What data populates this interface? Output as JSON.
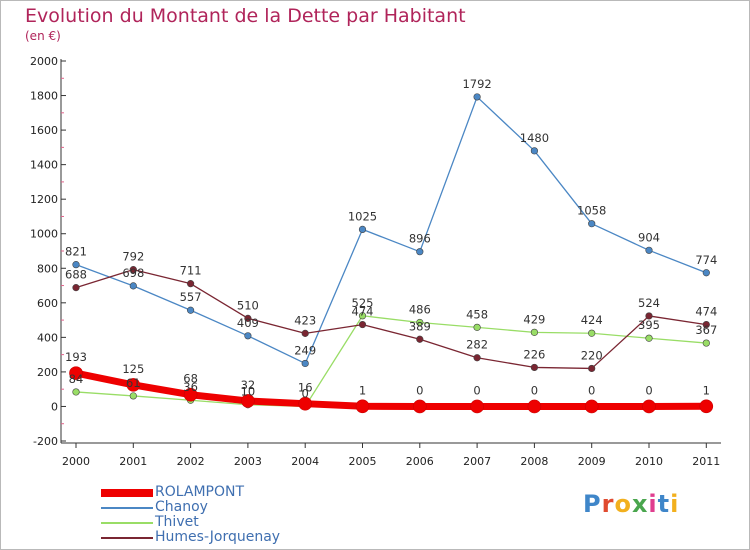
{
  "header": {
    "title": "Evolution du Montant de la Dette par Habitant",
    "subtitle": "(en €)"
  },
  "logo": {
    "text": "Proxiti",
    "colors": [
      "#3f86c9",
      "#e04a2f",
      "#f2b01e",
      "#4aa64e",
      "#e03e8f",
      "#3f86c9",
      "#f2b01e"
    ]
  },
  "chart_data": {
    "type": "line",
    "categories": [
      "2000",
      "2001",
      "2002",
      "2003",
      "2004",
      "2005",
      "2006",
      "2007",
      "2008",
      "2009",
      "2010",
      "2011"
    ],
    "ylim": [
      -200,
      2000
    ],
    "yticks": [
      -200,
      0,
      200,
      400,
      600,
      800,
      1000,
      1200,
      1400,
      1600,
      1800,
      2000
    ],
    "grid": false,
    "legend_position": "bottom-left",
    "series": [
      {
        "name": "Chanoy",
        "color": "#4b87c4",
        "values": [
          821,
          698,
          557,
          409,
          249,
          1025,
          896,
          1792,
          1480,
          1058,
          904,
          774
        ],
        "labels": [
          "821",
          "698",
          "557",
          "409",
          "249",
          "1025",
          "896",
          "1792",
          "1480",
          "1058",
          "904",
          "774"
        ]
      },
      {
        "name": "Thivet",
        "color": "#99dd66",
        "values": [
          84,
          61,
          36,
          10,
          0,
          525,
          486,
          458,
          429,
          424,
          395,
          367
        ],
        "labels": [
          "84",
          "61",
          "36",
          "10",
          "0",
          "525",
          "486",
          "458",
          "429",
          "424",
          "395",
          "367"
        ]
      },
      {
        "name": "Humes-Jorquenay",
        "color": "#7a2632",
        "values": [
          688,
          792,
          711,
          510,
          423,
          474,
          389,
          282,
          226,
          220,
          524,
          474
        ],
        "labels": [
          "688",
          "792",
          "711",
          "510",
          "423",
          "474",
          "389",
          "282",
          "226",
          "220",
          "524",
          "474"
        ]
      },
      {
        "name": "ROLAMPONT",
        "color": "#ee0000",
        "values": [
          193,
          125,
          68,
          32,
          16,
          1,
          0,
          0,
          0,
          0,
          0,
          1
        ],
        "labels": [
          "193",
          "125",
          "68",
          "32",
          "16",
          "1",
          "0",
          "0",
          "0",
          "0",
          "0",
          "1"
        ]
      }
    ],
    "legend_order": [
      "ROLAMPONT",
      "Chanoy",
      "Thivet",
      "Humes-Jorquenay"
    ]
  }
}
